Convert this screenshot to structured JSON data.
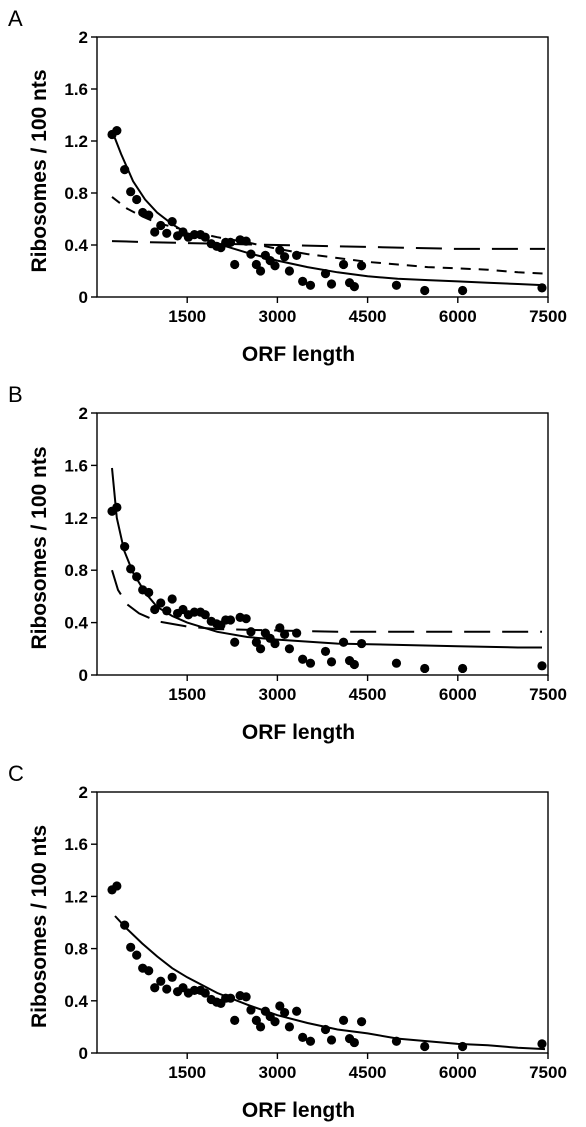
{
  "chart_data": [
    {
      "panel": "A",
      "type": "scatter",
      "xlabel": "ORF length",
      "ylabel": "Ribosomes / 100 nts",
      "xticks": [
        "1500",
        "3000",
        "4500",
        "6000",
        "7500"
      ],
      "yticks": [
        "0",
        "0.4",
        "0.8",
        "1.2",
        "1.6",
        "2"
      ],
      "xlim": [
        0,
        7500
      ],
      "ylim": [
        0,
        2
      ],
      "points": [
        [
          250,
          1.25
        ],
        [
          330,
          1.28
        ],
        [
          460,
          0.98
        ],
        [
          560,
          0.81
        ],
        [
          660,
          0.75
        ],
        [
          760,
          0.65
        ],
        [
          860,
          0.63
        ],
        [
          960,
          0.5
        ],
        [
          1060,
          0.55
        ],
        [
          1160,
          0.49
        ],
        [
          1250,
          0.58
        ],
        [
          1340,
          0.47
        ],
        [
          1430,
          0.5
        ],
        [
          1520,
          0.46
        ],
        [
          1620,
          0.48
        ],
        [
          1720,
          0.48
        ],
        [
          1800,
          0.46
        ],
        [
          1900,
          0.41
        ],
        [
          1990,
          0.39
        ],
        [
          2060,
          0.38
        ],
        [
          2140,
          0.42
        ],
        [
          2220,
          0.42
        ],
        [
          2290,
          0.25
        ],
        [
          2380,
          0.44
        ],
        [
          2480,
          0.43
        ],
        [
          2560,
          0.33
        ],
        [
          2650,
          0.25
        ],
        [
          2720,
          0.2
        ],
        [
          2800,
          0.32
        ],
        [
          2880,
          0.28
        ],
        [
          2960,
          0.24
        ],
        [
          3040,
          0.36
        ],
        [
          3120,
          0.31
        ],
        [
          3200,
          0.2
        ],
        [
          3320,
          0.32
        ],
        [
          3420,
          0.12
        ],
        [
          3550,
          0.09
        ],
        [
          3800,
          0.18
        ],
        [
          3900,
          0.1
        ],
        [
          4100,
          0.25
        ],
        [
          4200,
          0.11
        ],
        [
          4280,
          0.08
        ],
        [
          4400,
          0.24
        ],
        [
          4980,
          0.09
        ],
        [
          5450,
          0.05
        ],
        [
          6080,
          0.05
        ],
        [
          7400,
          0.07
        ]
      ],
      "curves": [
        {
          "style": "solid",
          "points": [
            [
              250,
              1.28
            ],
            [
              400,
              1.1
            ],
            [
              600,
              0.89
            ],
            [
              800,
              0.75
            ],
            [
              1000,
              0.65
            ],
            [
              1250,
              0.56
            ],
            [
              1500,
              0.49
            ],
            [
              2000,
              0.41
            ],
            [
              2500,
              0.34
            ],
            [
              3000,
              0.28
            ],
            [
              3500,
              0.23
            ],
            [
              4000,
              0.19
            ],
            [
              4500,
              0.16
            ],
            [
              5000,
              0.14
            ],
            [
              5500,
              0.13
            ],
            [
              6000,
              0.12
            ],
            [
              6500,
              0.11
            ],
            [
              7000,
              0.1
            ],
            [
              7450,
              0.09
            ]
          ]
        },
        {
          "style": "short-dash",
          "points": [
            [
              250,
              0.77
            ],
            [
              500,
              0.68
            ],
            [
              750,
              0.62
            ],
            [
              1000,
              0.57
            ],
            [
              1500,
              0.51
            ],
            [
              2000,
              0.46
            ],
            [
              2500,
              0.42
            ],
            [
              3000,
              0.37
            ],
            [
              3500,
              0.33
            ],
            [
              4000,
              0.3
            ],
            [
              4500,
              0.27
            ],
            [
              5000,
              0.25
            ],
            [
              5500,
              0.23
            ],
            [
              6000,
              0.22
            ],
            [
              6500,
              0.21
            ],
            [
              7000,
              0.19
            ],
            [
              7450,
              0.18
            ]
          ]
        },
        {
          "style": "long-dash",
          "points": [
            [
              250,
              0.43
            ],
            [
              1000,
              0.42
            ],
            [
              2000,
              0.41
            ],
            [
              3000,
              0.4
            ],
            [
              4000,
              0.39
            ],
            [
              5000,
              0.38
            ],
            [
              6000,
              0.37
            ],
            [
              7000,
              0.37
            ],
            [
              7450,
              0.37
            ]
          ]
        }
      ]
    },
    {
      "panel": "B",
      "type": "scatter",
      "xlabel": "ORF length",
      "ylabel": "Ribosomes / 100 nts",
      "xticks": [
        "1500",
        "3000",
        "4500",
        "6000",
        "7500"
      ],
      "yticks": [
        "0",
        "0.4",
        "0.8",
        "1.2",
        "1.6",
        "2"
      ],
      "xlim": [
        0,
        7500
      ],
      "ylim": [
        0,
        2
      ],
      "points": [
        [
          250,
          1.25
        ],
        [
          330,
          1.28
        ],
        [
          460,
          0.98
        ],
        [
          560,
          0.81
        ],
        [
          660,
          0.75
        ],
        [
          760,
          0.65
        ],
        [
          860,
          0.63
        ],
        [
          960,
          0.5
        ],
        [
          1060,
          0.55
        ],
        [
          1160,
          0.49
        ],
        [
          1250,
          0.58
        ],
        [
          1340,
          0.47
        ],
        [
          1430,
          0.5
        ],
        [
          1520,
          0.46
        ],
        [
          1620,
          0.48
        ],
        [
          1720,
          0.48
        ],
        [
          1800,
          0.46
        ],
        [
          1900,
          0.41
        ],
        [
          1990,
          0.39
        ],
        [
          2060,
          0.38
        ],
        [
          2140,
          0.42
        ],
        [
          2220,
          0.42
        ],
        [
          2290,
          0.25
        ],
        [
          2380,
          0.44
        ],
        [
          2480,
          0.43
        ],
        [
          2560,
          0.33
        ],
        [
          2650,
          0.25
        ],
        [
          2720,
          0.2
        ],
        [
          2800,
          0.32
        ],
        [
          2880,
          0.28
        ],
        [
          2960,
          0.24
        ],
        [
          3040,
          0.36
        ],
        [
          3120,
          0.31
        ],
        [
          3200,
          0.2
        ],
        [
          3320,
          0.32
        ],
        [
          3420,
          0.12
        ],
        [
          3550,
          0.09
        ],
        [
          3800,
          0.18
        ],
        [
          3900,
          0.1
        ],
        [
          4100,
          0.25
        ],
        [
          4200,
          0.11
        ],
        [
          4280,
          0.08
        ],
        [
          4400,
          0.24
        ],
        [
          4980,
          0.09
        ],
        [
          5450,
          0.05
        ],
        [
          6080,
          0.05
        ],
        [
          7400,
          0.07
        ]
      ],
      "curves": [
        {
          "style": "solid",
          "points": [
            [
              250,
              1.58
            ],
            [
              330,
              1.2
            ],
            [
              450,
              0.95
            ],
            [
              600,
              0.78
            ],
            [
              800,
              0.63
            ],
            [
              1000,
              0.52
            ],
            [
              1250,
              0.45
            ],
            [
              1500,
              0.4
            ],
            [
              2000,
              0.33
            ],
            [
              2500,
              0.29
            ],
            [
              3000,
              0.27
            ],
            [
              4000,
              0.24
            ],
            [
              5000,
              0.23
            ],
            [
              6000,
              0.22
            ],
            [
              7000,
              0.21
            ],
            [
              7400,
              0.21
            ]
          ]
        },
        {
          "style": "long-dash",
          "points": [
            [
              250,
              0.8
            ],
            [
              350,
              0.65
            ],
            [
              500,
              0.54
            ],
            [
              700,
              0.47
            ],
            [
              1000,
              0.41
            ],
            [
              1500,
              0.37
            ],
            [
              2000,
              0.35
            ],
            [
              3000,
              0.34
            ],
            [
              4000,
              0.33
            ],
            [
              5000,
              0.33
            ],
            [
              6000,
              0.33
            ],
            [
              7000,
              0.33
            ],
            [
              7400,
              0.33
            ]
          ]
        }
      ]
    },
    {
      "panel": "C",
      "type": "scatter",
      "xlabel": "ORF length",
      "ylabel": "Ribosomes / 100 nts",
      "xticks": [
        "1500",
        "3000",
        "4500",
        "6000",
        "7500"
      ],
      "yticks": [
        "0",
        "0.4",
        "0.8",
        "1.2",
        "1.6",
        "2"
      ],
      "xlim": [
        0,
        7500
      ],
      "ylim": [
        0,
        2
      ],
      "points": [
        [
          250,
          1.25
        ],
        [
          330,
          1.28
        ],
        [
          460,
          0.98
        ],
        [
          560,
          0.81
        ],
        [
          660,
          0.75
        ],
        [
          760,
          0.65
        ],
        [
          860,
          0.63
        ],
        [
          960,
          0.5
        ],
        [
          1060,
          0.55
        ],
        [
          1160,
          0.49
        ],
        [
          1250,
          0.58
        ],
        [
          1340,
          0.47
        ],
        [
          1430,
          0.5
        ],
        [
          1520,
          0.46
        ],
        [
          1620,
          0.48
        ],
        [
          1720,
          0.48
        ],
        [
          1800,
          0.46
        ],
        [
          1900,
          0.41
        ],
        [
          1990,
          0.39
        ],
        [
          2060,
          0.38
        ],
        [
          2140,
          0.42
        ],
        [
          2220,
          0.42
        ],
        [
          2290,
          0.25
        ],
        [
          2380,
          0.44
        ],
        [
          2480,
          0.43
        ],
        [
          2560,
          0.33
        ],
        [
          2650,
          0.25
        ],
        [
          2720,
          0.2
        ],
        [
          2800,
          0.32
        ],
        [
          2880,
          0.28
        ],
        [
          2960,
          0.24
        ],
        [
          3040,
          0.36
        ],
        [
          3120,
          0.31
        ],
        [
          3200,
          0.2
        ],
        [
          3320,
          0.32
        ],
        [
          3420,
          0.12
        ],
        [
          3550,
          0.09
        ],
        [
          3800,
          0.18
        ],
        [
          3900,
          0.1
        ],
        [
          4100,
          0.25
        ],
        [
          4200,
          0.11
        ],
        [
          4280,
          0.08
        ],
        [
          4400,
          0.24
        ],
        [
          4980,
          0.09
        ],
        [
          5450,
          0.05
        ],
        [
          6080,
          0.05
        ],
        [
          7400,
          0.07
        ]
      ],
      "curves": [
        {
          "style": "solid",
          "points": [
            [
              300,
              1.05
            ],
            [
              500,
              0.95
            ],
            [
              750,
              0.84
            ],
            [
              1000,
              0.74
            ],
            [
              1250,
              0.65
            ],
            [
              1500,
              0.58
            ],
            [
              2000,
              0.46
            ],
            [
              2500,
              0.37
            ],
            [
              3000,
              0.29
            ],
            [
              3500,
              0.23
            ],
            [
              4000,
              0.18
            ],
            [
              4500,
              0.15
            ],
            [
              5000,
              0.11
            ],
            [
              5500,
              0.09
            ],
            [
              6000,
              0.07
            ],
            [
              6500,
              0.06
            ],
            [
              7000,
              0.04
            ],
            [
              7450,
              0.03
            ]
          ]
        }
      ]
    }
  ]
}
